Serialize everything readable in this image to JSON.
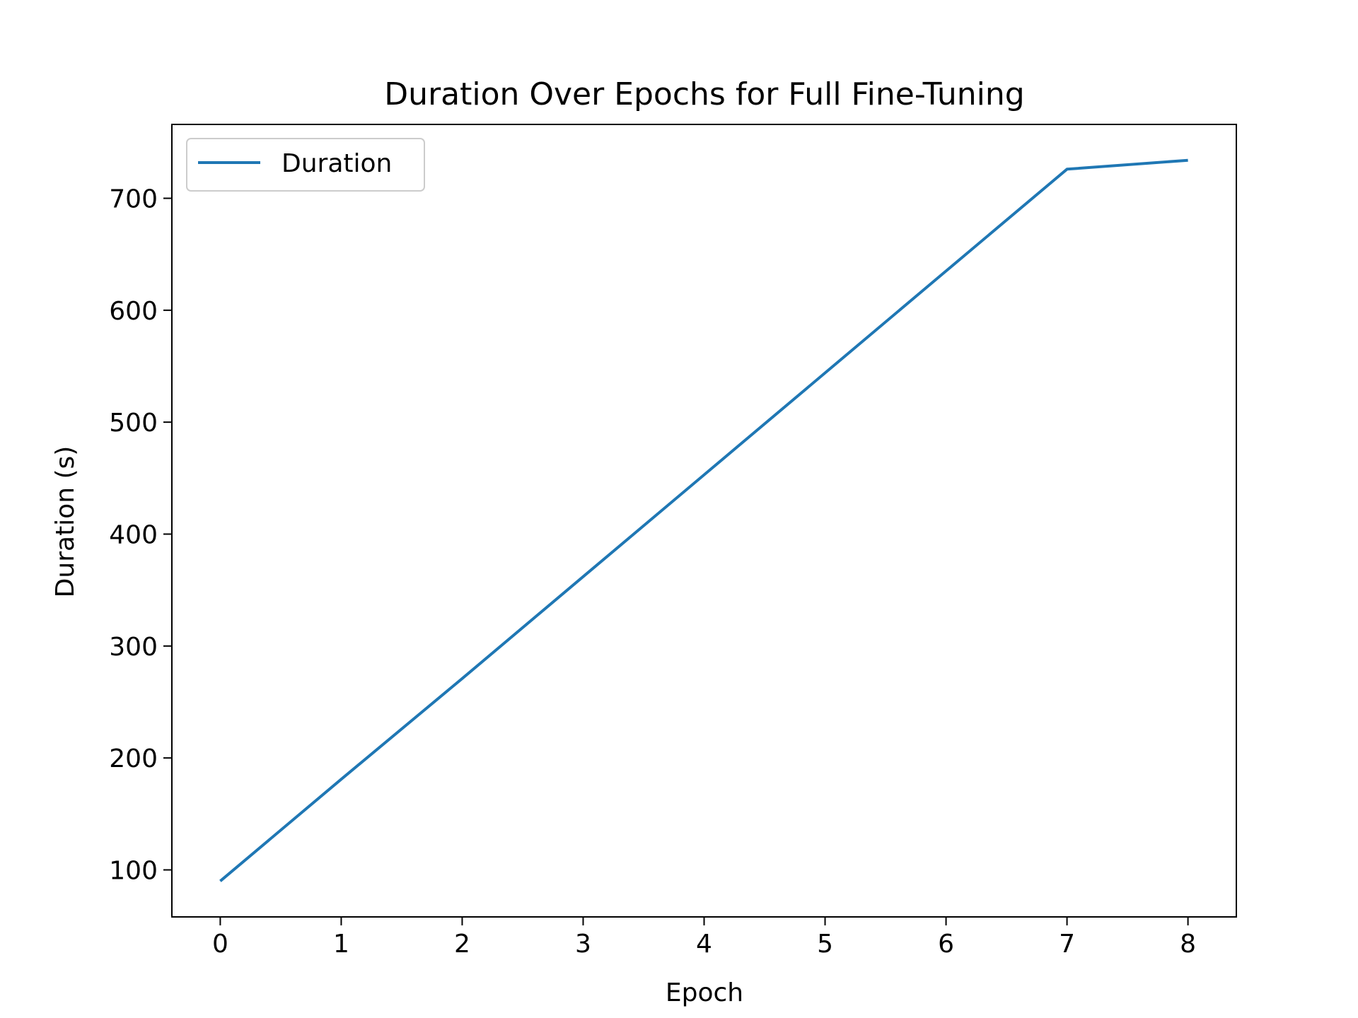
{
  "chart_data": {
    "type": "line",
    "title": "Duration Over Epochs for Full Fine-Tuning",
    "xlabel": "Epoch",
    "ylabel": "Duration (s)",
    "x": [
      0,
      1,
      2,
      3,
      4,
      5,
      6,
      7,
      8
    ],
    "series": [
      {
        "name": "Duration",
        "color": "#1f77b4",
        "values": [
          90,
          181,
          271,
          362,
          453,
          544,
          635,
          726,
          734
        ]
      }
    ],
    "xlim": [
      -0.4,
      8.4
    ],
    "ylim": [
      58,
      766
    ],
    "xticks": [
      0,
      1,
      2,
      3,
      4,
      5,
      6,
      7,
      8
    ],
    "yticks": [
      100,
      200,
      300,
      400,
      500,
      600,
      700
    ],
    "grid": false,
    "legend": "upper left"
  }
}
